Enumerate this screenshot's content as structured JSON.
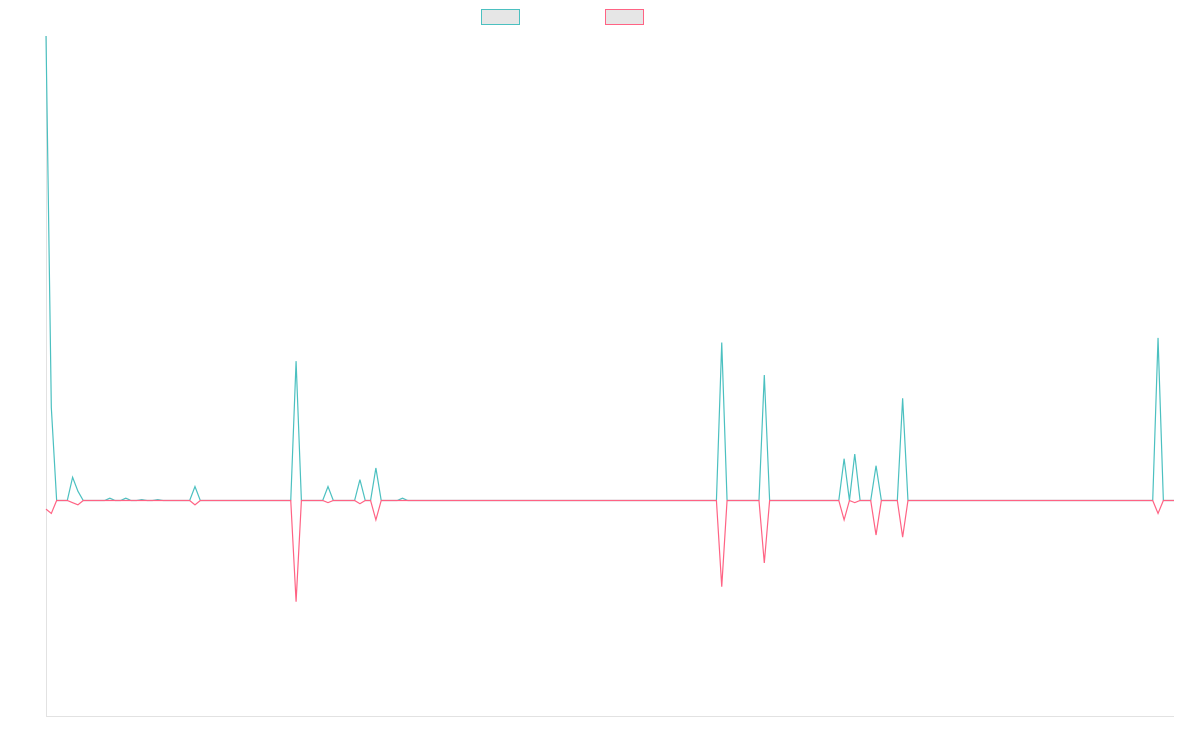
{
  "chart_data": {
    "type": "line",
    "title": "",
    "xlabel": "",
    "ylabel": "",
    "grid": false,
    "legend_position": "top-center",
    "x": [
      0,
      1,
      2,
      3,
      4,
      5,
      6,
      7,
      8,
      9,
      10,
      11,
      12,
      13,
      14,
      15,
      16,
      17,
      18,
      19,
      20,
      21,
      22,
      23,
      24,
      25,
      26,
      27,
      28,
      29,
      30,
      31,
      32,
      33,
      34,
      35,
      36,
      37,
      38,
      39,
      40,
      41,
      42,
      43,
      44,
      45,
      46,
      47,
      48,
      49,
      50,
      51,
      52,
      53,
      54,
      55,
      56,
      57,
      58,
      59,
      60,
      61,
      62,
      63,
      64,
      65,
      66,
      67,
      68,
      69,
      70,
      71,
      72,
      73,
      74,
      75,
      76,
      77,
      78,
      79,
      80,
      81,
      82,
      83,
      84,
      85,
      86,
      87,
      88,
      89,
      90,
      91,
      92,
      93,
      94,
      95,
      96,
      97,
      98,
      99,
      100,
      101,
      102,
      103,
      104,
      105,
      106,
      107,
      108,
      109,
      110,
      111,
      112,
      113,
      114,
      115,
      116,
      117,
      118,
      119,
      120,
      121,
      122,
      123,
      124,
      125,
      126,
      127,
      128,
      129,
      130,
      131,
      132,
      133,
      134,
      135,
      136,
      137,
      138,
      139,
      140,
      141,
      142,
      143,
      144,
      145,
      146,
      147,
      148,
      149,
      150,
      151,
      152,
      153,
      154,
      155,
      156,
      157,
      158,
      159,
      160,
      161,
      162,
      163,
      164,
      165,
      166,
      167,
      168,
      169,
      170,
      171,
      172,
      173,
      174,
      175,
      176,
      177,
      178,
      179,
      180,
      181,
      182,
      183,
      184,
      185,
      186,
      187,
      188,
      189,
      190,
      191,
      192,
      193,
      194,
      195,
      196,
      197,
      198,
      199,
      200,
      201,
      202,
      203,
      204,
      205,
      206,
      207,
      208,
      209,
      210,
      211,
      212
    ],
    "ylim": [
      -1,
      1
    ],
    "series": [
      {
        "name": "",
        "color": "#4bc0c0",
        "points": [
          [
            0,
            1.0
          ],
          [
            1,
            0.2
          ],
          [
            5,
            0.05
          ],
          [
            6,
            0.02
          ],
          [
            12,
            0.005
          ],
          [
            15,
            0.005
          ],
          [
            18,
            0.002
          ],
          [
            21,
            0.002
          ],
          [
            28,
            0.03
          ],
          [
            47,
            0.3
          ],
          [
            53,
            0.03
          ],
          [
            59,
            0.045
          ],
          [
            62,
            0.07
          ],
          [
            67,
            0.005
          ],
          [
            127,
            0.34
          ],
          [
            135,
            0.27
          ],
          [
            150,
            0.09
          ],
          [
            152,
            0.1
          ],
          [
            156,
            0.075
          ],
          [
            161,
            0.22
          ],
          [
            209,
            0.35
          ]
        ]
      },
      {
        "name": "",
        "color": "#ff6384",
        "points": [
          [
            0,
            -0.04
          ],
          [
            1,
            -0.06
          ],
          [
            5,
            -0.01
          ],
          [
            6,
            -0.02
          ],
          [
            28,
            -0.02
          ],
          [
            47,
            -0.47
          ],
          [
            53,
            -0.01
          ],
          [
            59,
            -0.015
          ],
          [
            62,
            -0.09
          ],
          [
            127,
            -0.4
          ],
          [
            135,
            -0.29
          ],
          [
            150,
            -0.09
          ],
          [
            152,
            -0.01
          ],
          [
            156,
            -0.16
          ],
          [
            161,
            -0.17
          ],
          [
            209,
            -0.06
          ]
        ]
      }
    ]
  },
  "colors": {
    "axis": "#e2e2e2",
    "legend_fill": "#e6e6e6"
  }
}
